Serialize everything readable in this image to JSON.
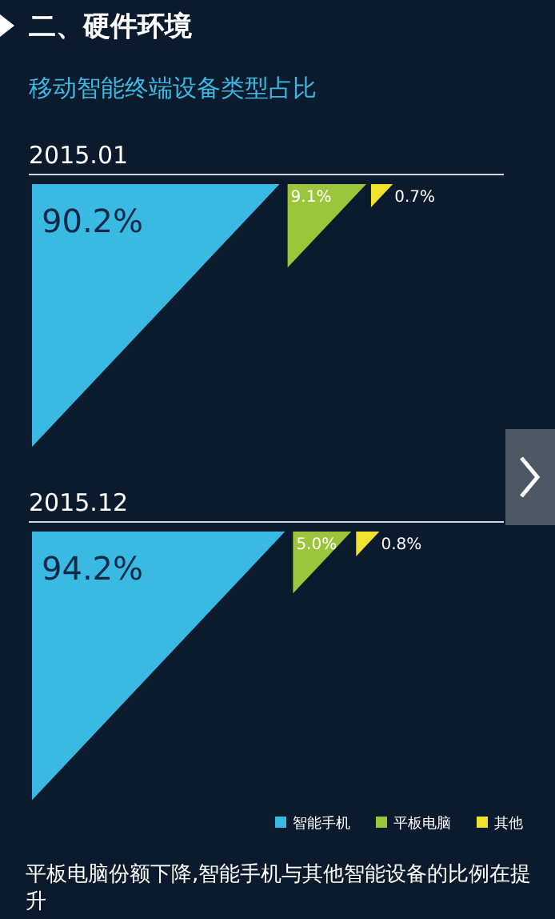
{
  "chart_data": {
    "type": "other",
    "title": "二、硬件环境",
    "subtitle": "移动智能终端设备类型占比",
    "annotations": [
      "平板电脑份额下降,智能手机与其他智能设备的比例在提升"
    ],
    "categories": [
      "2015.01",
      "2015.12"
    ],
    "legend": "bottom right",
    "series": [
      {
        "name": "智能手机",
        "color": "#3ab9e2",
        "values": [
          90.2,
          94.2
        ],
        "value_labels": [
          "90.2%",
          "94.2%"
        ]
      },
      {
        "name": "平板电脑",
        "color": "#9cc53b",
        "values": [
          9.1,
          5.0
        ],
        "value_labels": [
          "9.1%",
          "5.0%"
        ]
      },
      {
        "name": "其他",
        "color": "#f1e22f",
        "values": [
          0.7,
          0.8
        ],
        "value_labels": [
          "0.7%",
          "0.8%"
        ]
      }
    ]
  }
}
